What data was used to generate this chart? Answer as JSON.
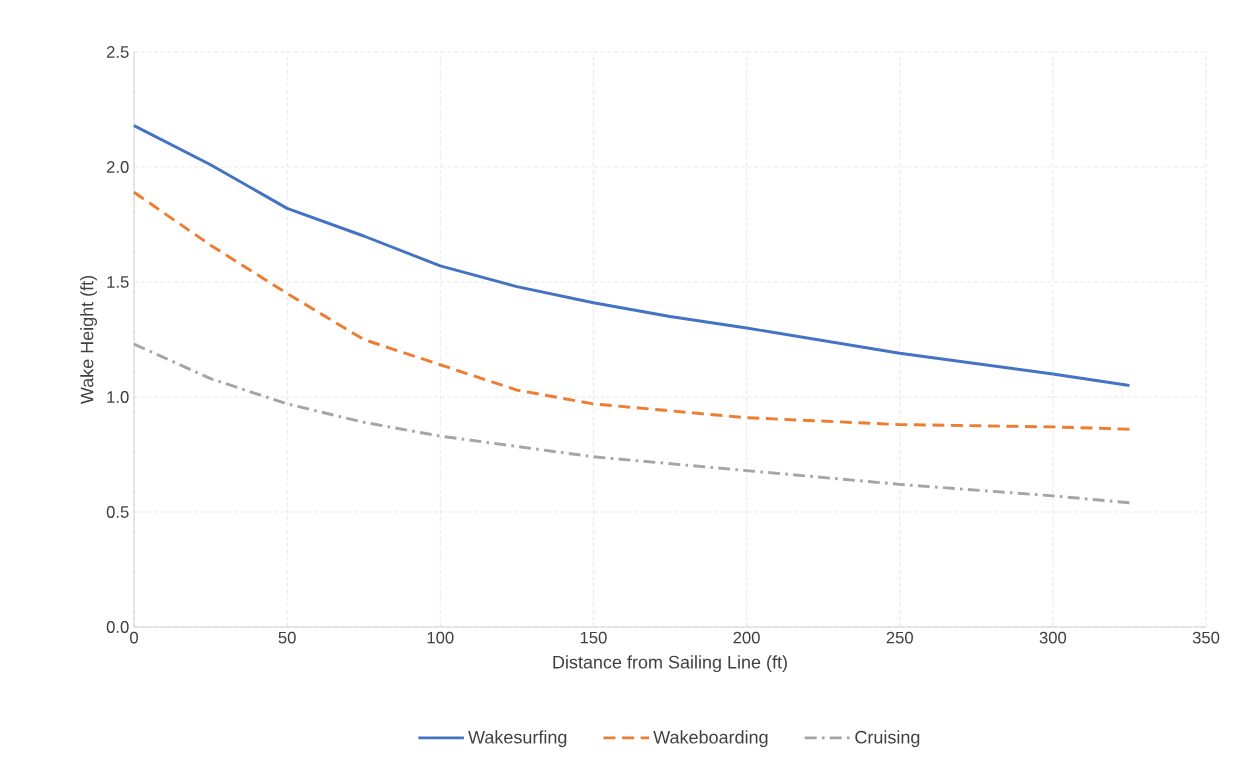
{
  "chart_data": {
    "type": "line",
    "xlabel": "Distance from Sailing Line (ft)",
    "ylabel": "Wake Height (ft)",
    "xlim": [
      0,
      350
    ],
    "xticks": [
      0,
      50,
      100,
      150,
      200,
      250,
      300,
      350
    ],
    "ylim": [
      0,
      2.5
    ],
    "yticks": [
      {
        "value": 0,
        "label": "0.0"
      },
      0.5,
      {
        "value": 1,
        "label": "1.0"
      },
      1.5,
      {
        "value": 2,
        "label": "2.0"
      },
      2.5
    ],
    "grid": true,
    "legend": "bottom",
    "marker": "none",
    "series": [
      {
        "name": "Wakesurfing",
        "color": "#4472c4",
        "line_style": "solid",
        "x": [
          0,
          25,
          50,
          75,
          100,
          125,
          150,
          175,
          200,
          250,
          300,
          325
        ],
        "values": [
          2.18,
          2.01,
          1.82,
          1.7,
          1.57,
          1.48,
          1.41,
          1.35,
          1.3,
          1.19,
          1.1,
          1.05
        ]
      },
      {
        "name": "Wakeboarding",
        "color": "#ed7d31",
        "line_style": "dashed",
        "x": [
          0,
          25,
          50,
          75,
          100,
          125,
          150,
          200,
          250,
          300,
          325
        ],
        "values": [
          1.89,
          1.66,
          1.45,
          1.25,
          1.14,
          1.03,
          0.97,
          0.91,
          0.88,
          0.87,
          0.86
        ]
      },
      {
        "name": "Cruising",
        "color": "#a5a5a5",
        "line_style": "dashdot",
        "x": [
          0,
          25,
          50,
          75,
          100,
          150,
          200,
          250,
          300,
          325
        ],
        "values": [
          1.23,
          1.08,
          0.97,
          0.89,
          0.83,
          0.74,
          0.68,
          0.62,
          0.57,
          0.54
        ]
      }
    ]
  }
}
